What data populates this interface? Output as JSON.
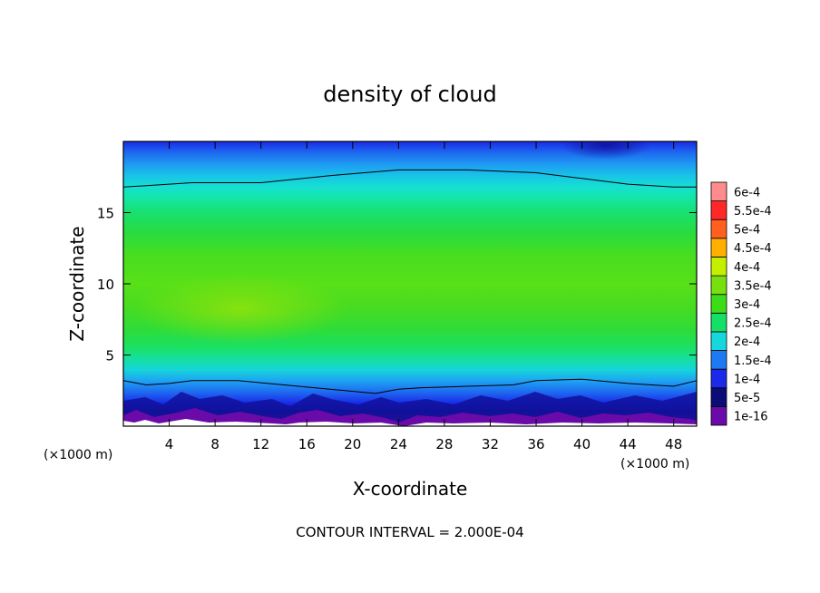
{
  "chart_data": {
    "type": "heatmap",
    "title": "density of cloud",
    "xlabel": "X-coordinate",
    "ylabel": "Z-coordinate",
    "x_unit_left": "(×1000 m)",
    "x_unit_right": "(×1000 m)",
    "footer": "CONTOUR INTERVAL = 2.000E-04",
    "xlim": [
      0,
      50
    ],
    "ylim": [
      0,
      20
    ],
    "x_ticks": [
      4,
      8,
      12,
      16,
      20,
      24,
      28,
      32,
      36,
      40,
      44,
      48
    ],
    "y_ticks": [
      5,
      10,
      15
    ],
    "colorbar": {
      "labels": [
        "1e-16",
        "5e-5",
        "1e-4",
        "1.5e-4",
        "2e-4",
        "2.5e-4",
        "3e-4",
        "3.5e-4",
        "4e-4",
        "4.5e-4",
        "5e-4",
        "5.5e-4",
        "6e-4"
      ],
      "colors": [
        "#6a0aa8",
        "#0c0c78",
        "#1a2ae8",
        "#1e7af2",
        "#16d8dc",
        "#14e068",
        "#3cdc18",
        "#78e010",
        "#c4f000",
        "#ffb000",
        "#ff6020",
        "#ff2828",
        "#ff8c8c"
      ]
    },
    "contours": [
      {
        "level": "2e-4",
        "x": [
          0,
          2,
          6,
          12,
          18,
          24,
          30,
          36,
          40,
          44,
          48,
          50
        ],
        "z": [
          16.8,
          16.9,
          17.1,
          17.1,
          17.6,
          18.0,
          18.0,
          17.8,
          17.4,
          17.0,
          16.8,
          16.8
        ]
      },
      {
        "level": "1.5e-4",
        "x": [
          0,
          2,
          4,
          6,
          10,
          14,
          18,
          22,
          24,
          26,
          30,
          34,
          36,
          40,
          44,
          48,
          50
        ],
        "z": [
          3.2,
          2.9,
          3.0,
          3.2,
          3.2,
          2.9,
          2.6,
          2.3,
          2.6,
          2.7,
          2.8,
          2.9,
          3.2,
          3.3,
          3.0,
          2.8,
          3.2
        ]
      }
    ]
  }
}
